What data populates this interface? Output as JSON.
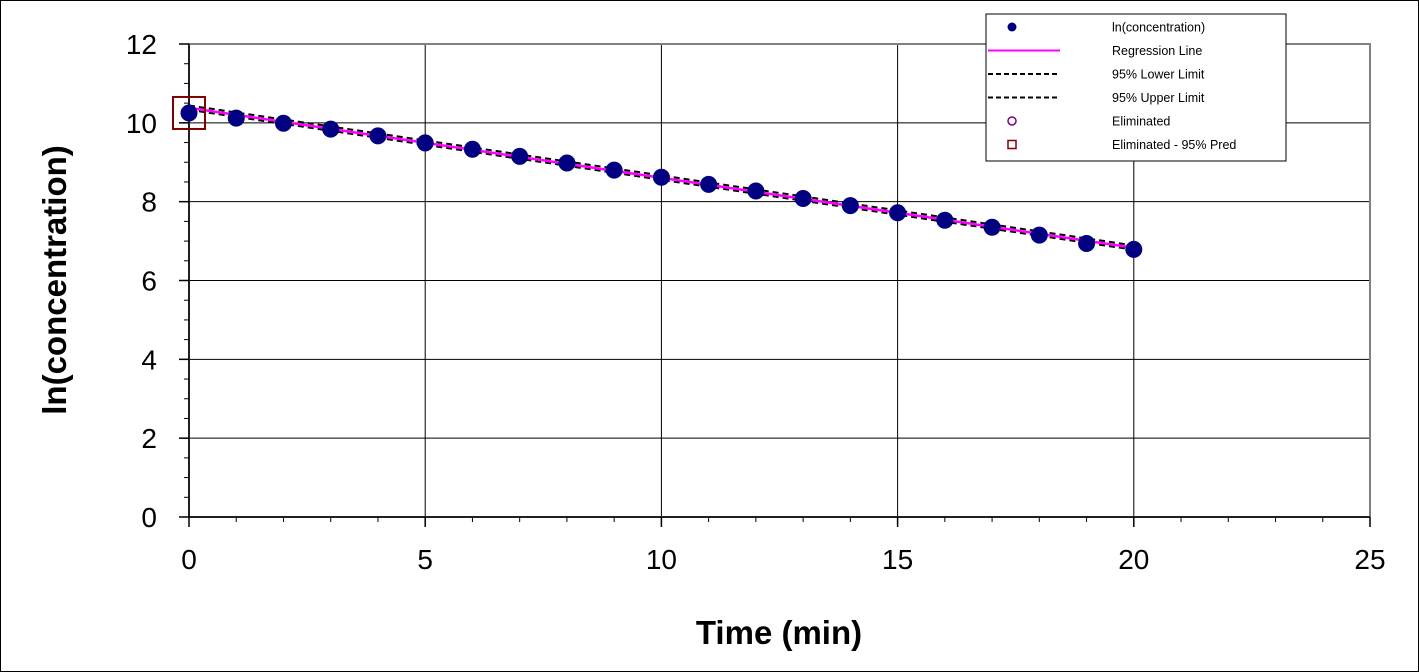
{
  "chart_data": {
    "type": "scatter",
    "title": "",
    "xlabel": "Time (min)",
    "ylabel": "ln(concentration)",
    "xlim": [
      0,
      25
    ],
    "ylim": [
      0,
      12
    ],
    "xticks": [
      0,
      5,
      10,
      15,
      20,
      25
    ],
    "yticks": [
      0,
      2,
      4,
      6,
      8,
      10,
      12
    ],
    "x_minor_step": 1,
    "y_minor_step": 0.5,
    "grid": true,
    "legend_position": "top-right",
    "series": [
      {
        "name": "ln(concentration)",
        "kind": "points",
        "color": "#000080",
        "x": [
          0,
          1,
          2,
          3,
          4,
          5,
          6,
          7,
          8,
          9,
          10,
          11,
          12,
          13,
          14,
          15,
          16,
          17,
          18,
          19,
          20
        ],
        "y": [
          10.25,
          10.12,
          9.99,
          9.84,
          9.67,
          9.49,
          9.33,
          9.15,
          8.98,
          8.8,
          8.62,
          8.44,
          8.27,
          8.08,
          7.9,
          7.72,
          7.53,
          7.35,
          7.15,
          6.94,
          6.79
        ]
      },
      {
        "name": "Regression Line",
        "kind": "line",
        "color": "#ff00ff",
        "x": [
          0,
          20
        ],
        "y": [
          10.38,
          6.83
        ]
      },
      {
        "name": "95% Lower Limit",
        "kind": "dashed-line",
        "color": "#000000",
        "x": [
          0,
          20
        ],
        "y": [
          10.33,
          6.78
        ]
      },
      {
        "name": "95% Upper Limit",
        "kind": "dashed-line",
        "color": "#000000",
        "x": [
          0,
          20
        ],
        "y": [
          10.44,
          6.89
        ]
      },
      {
        "name": "Eliminated",
        "kind": "open-circle",
        "color": "#800080",
        "x": [],
        "y": []
      },
      {
        "name": "Eliminated - 95% Pred",
        "kind": "open-square",
        "color": "#800000",
        "x": [
          0
        ],
        "y": [
          10.25
        ]
      }
    ]
  }
}
